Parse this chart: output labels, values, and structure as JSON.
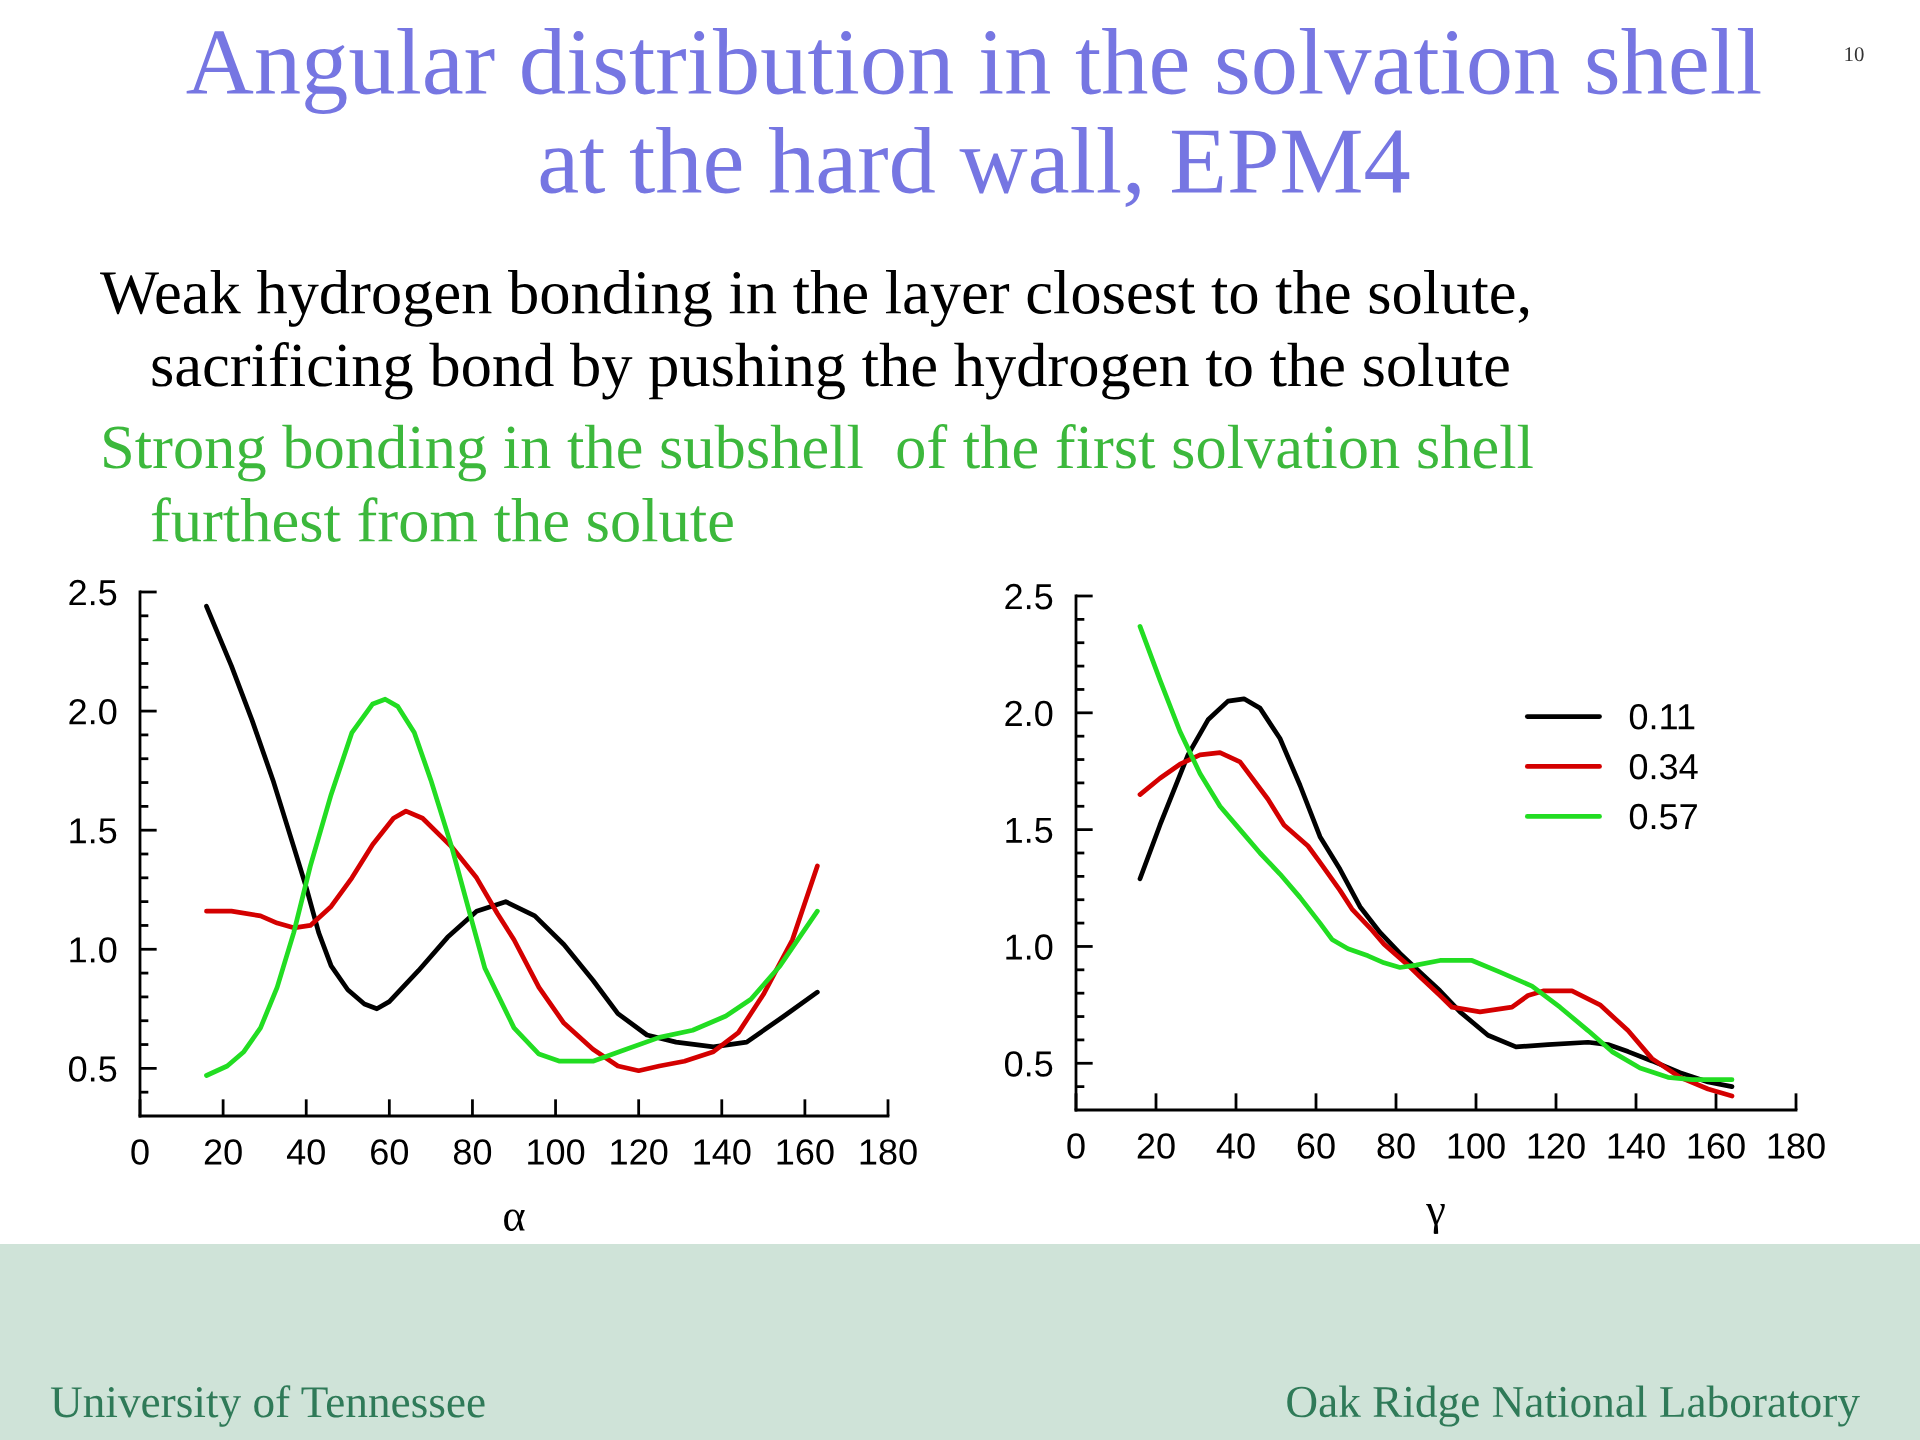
{
  "chart_data": [
    {
      "type": "other",
      "title": "Angular distribution in the solvation shell\nat the hard wall, EPM4",
      "subtitle": "Weak hydrogen bonding in the layer closest to the solute,\nsacrificing bond by pushing the hydrogen to the solute",
      "annotations": [
        "Strong bonding in the subshell  of the first solvation shell\nfurthest from the solute",
        "10",
        "University of Tennessee",
        "Oak Ridge National Laboratory"
      ]
    },
    {
      "type": "line",
      "xlabel": "α",
      "xlim": [
        0,
        180
      ],
      "xticks": [
        0,
        20,
        40,
        60,
        80,
        100,
        120,
        140,
        160,
        180
      ],
      "ylim": [
        0.3,
        2.5
      ],
      "yticks": [
        {
          "value": 0.4,
          "label": null
        },
        0.5,
        {
          "value": 0.6,
          "label": null
        },
        {
          "value": 0.7,
          "label": null
        },
        {
          "value": 0.8,
          "label": null
        },
        {
          "value": 0.9,
          "label": null
        },
        {
          "value": 1,
          "label": "1.0"
        },
        {
          "value": 1.1,
          "label": null
        },
        {
          "value": 1.2,
          "label": null
        },
        {
          "value": 1.3,
          "label": null
        },
        {
          "value": 1.4,
          "label": null
        },
        1.5,
        {
          "value": 1.6,
          "label": null
        },
        {
          "value": 1.7,
          "label": null
        },
        {
          "value": 1.8,
          "label": null
        },
        {
          "value": 1.9,
          "label": null
        },
        {
          "value": 2,
          "label": "2.0"
        },
        {
          "value": 2.1,
          "label": null
        },
        {
          "value": 2.2,
          "label": null
        },
        {
          "value": 2.3,
          "label": null
        },
        {
          "value": 2.4,
          "label": null
        },
        2.5
      ],
      "series": [
        {
          "color": "#000000",
          "x": [
            16,
            22,
            27,
            32,
            37,
            40,
            43,
            46,
            50,
            54,
            57,
            60,
            67,
            74,
            81,
            88,
            95,
            102,
            109,
            115,
            122,
            129,
            138,
            146,
            155,
            163
          ],
          "values": [
            2.44,
            2.19,
            1.96,
            1.71,
            1.43,
            1.26,
            1.07,
            0.93,
            0.83,
            0.77,
            0.75,
            0.78,
            0.91,
            1.05,
            1.16,
            1.2,
            1.14,
            1.02,
            0.87,
            0.73,
            0.64,
            0.61,
            0.59,
            0.61,
            0.72,
            0.82
          ]
        },
        {
          "color": "#d40000",
          "x": [
            16,
            22,
            29,
            33,
            37,
            41,
            46,
            51,
            56,
            61,
            64,
            68,
            75,
            81,
            86,
            90,
            96,
            102,
            109,
            115,
            120,
            125,
            131,
            138,
            144,
            150,
            157,
            163
          ],
          "values": [
            1.16,
            1.16,
            1.14,
            1.11,
            1.09,
            1.1,
            1.18,
            1.3,
            1.44,
            1.55,
            1.58,
            1.55,
            1.43,
            1.3,
            1.15,
            1.04,
            0.84,
            0.69,
            0.58,
            0.51,
            0.49,
            0.51,
            0.53,
            0.57,
            0.65,
            0.81,
            1.04,
            1.35
          ]
        },
        {
          "color": "#22dd22",
          "x": [
            16,
            21,
            25,
            29,
            33,
            37,
            41,
            46,
            51,
            56,
            59,
            62,
            66,
            70,
            75,
            80,
            83,
            90,
            96,
            101,
            109,
            117,
            125,
            133,
            141,
            147,
            154,
            163
          ],
          "values": [
            0.47,
            0.51,
            0.57,
            0.67,
            0.84,
            1.07,
            1.35,
            1.65,
            1.91,
            2.03,
            2.05,
            2.02,
            1.91,
            1.71,
            1.43,
            1.11,
            0.92,
            0.67,
            0.56,
            0.53,
            0.53,
            0.58,
            0.63,
            0.66,
            0.72,
            0.79,
            0.93,
            1.16
          ]
        }
      ]
    },
    {
      "type": "line",
      "xlabel": "γ",
      "xlim": [
        0,
        180
      ],
      "xticks": [
        0,
        20,
        40,
        60,
        80,
        100,
        120,
        140,
        160,
        180
      ],
      "ylim": [
        0.3,
        2.5
      ],
      "yticks": [
        {
          "value": 0.4,
          "label": null
        },
        0.5,
        {
          "value": 0.6,
          "label": null
        },
        {
          "value": 0.7,
          "label": null
        },
        {
          "value": 0.8,
          "label": null
        },
        {
          "value": 0.9,
          "label": null
        },
        {
          "value": 1,
          "label": "1.0"
        },
        {
          "value": 1.1,
          "label": null
        },
        {
          "value": 1.2,
          "label": null
        },
        {
          "value": 1.3,
          "label": null
        },
        {
          "value": 1.4,
          "label": null
        },
        1.5,
        {
          "value": 1.6,
          "label": null
        },
        {
          "value": 1.7,
          "label": null
        },
        {
          "value": 1.8,
          "label": null
        },
        {
          "value": 1.9,
          "label": null
        },
        {
          "value": 2,
          "label": "2.0"
        },
        {
          "value": 2.1,
          "label": null
        },
        {
          "value": 2.2,
          "label": null
        },
        {
          "value": 2.3,
          "label": null
        },
        {
          "value": 2.4,
          "label": null
        },
        2.5
      ],
      "legend": "top right",
      "series": [
        {
          "name": "0.11",
          "color": "#000000",
          "x": [
            16,
            21,
            28,
            33,
            38,
            42,
            46,
            51,
            56,
            61,
            66,
            71,
            76,
            81,
            86,
            91,
            96,
            103,
            110,
            118,
            128,
            133,
            138,
            144,
            151,
            158,
            164
          ],
          "values": [
            1.29,
            1.52,
            1.82,
            1.97,
            2.05,
            2.06,
            2.02,
            1.89,
            1.69,
            1.47,
            1.33,
            1.17,
            1.06,
            0.97,
            0.89,
            0.81,
            0.72,
            0.62,
            0.57,
            0.58,
            0.59,
            0.58,
            0.55,
            0.51,
            0.46,
            0.42,
            0.4
          ]
        },
        {
          "name": "0.34",
          "color": "#d40000",
          "x": [
            16,
            21,
            26,
            31,
            36,
            41,
            48,
            52,
            58,
            61,
            66,
            69,
            74,
            77,
            83,
            86,
            91,
            94,
            101,
            109,
            113,
            117,
            124,
            131,
            138,
            144,
            151,
            158,
            164
          ],
          "values": [
            1.65,
            1.72,
            1.78,
            1.82,
            1.83,
            1.79,
            1.63,
            1.52,
            1.43,
            1.36,
            1.24,
            1.16,
            1.07,
            1.01,
            0.92,
            0.87,
            0.79,
            0.74,
            0.72,
            0.74,
            0.79,
            0.81,
            0.81,
            0.75,
            0.64,
            0.52,
            0.44,
            0.39,
            0.36
          ]
        },
        {
          "name": "0.57",
          "color": "#22dd22",
          "x": [
            16,
            21,
            26,
            31,
            36,
            41,
            46,
            51,
            56,
            61,
            64,
            68,
            73,
            77,
            81,
            85,
            91,
            99,
            106,
            114,
            121,
            128,
            134,
            141,
            148,
            154,
            164
          ],
          "values": [
            2.37,
            2.14,
            1.92,
            1.74,
            1.6,
            1.5,
            1.4,
            1.31,
            1.21,
            1.1,
            1.03,
            0.99,
            0.96,
            0.93,
            0.91,
            0.92,
            0.94,
            0.94,
            0.89,
            0.83,
            0.74,
            0.64,
            0.55,
            0.48,
            0.44,
            0.43,
            0.43
          ]
        }
      ]
    }
  ]
}
